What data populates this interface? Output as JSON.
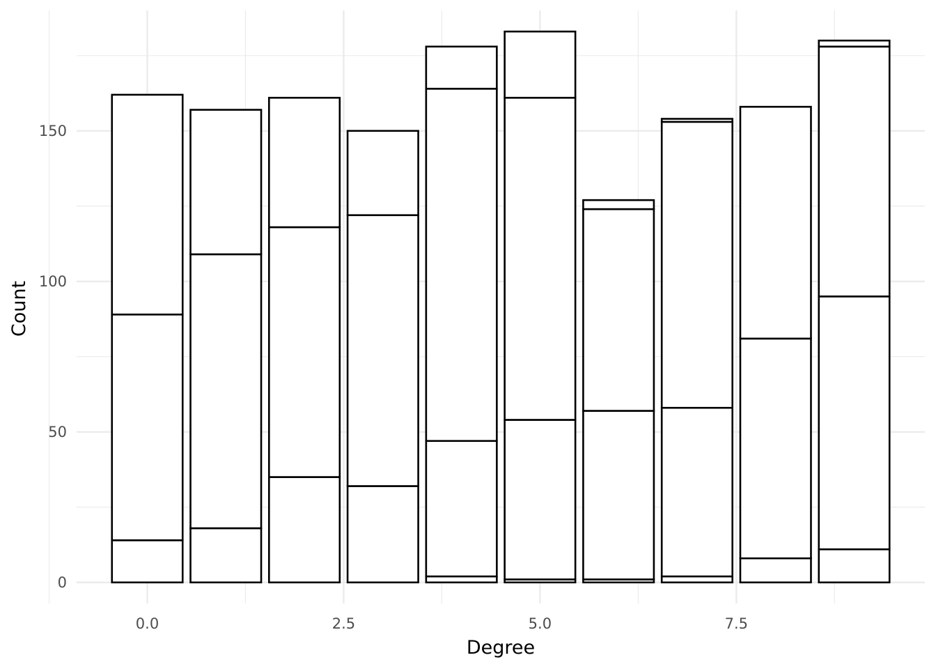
{
  "chart_data": {
    "type": "bar",
    "stacked": true,
    "title": "",
    "xlabel": "Degree",
    "ylabel": "Count",
    "x": [
      0,
      1,
      2,
      3,
      4,
      5,
      6,
      7,
      8,
      9
    ],
    "xlim": [
      -0.9,
      9.9
    ],
    "ylim": [
      -7,
      190
    ],
    "x_ticks": [
      0.0,
      2.5,
      5.0,
      7.5
    ],
    "x_tick_labels": [
      "0.0",
      "2.5",
      "5.0",
      "7.5"
    ],
    "y_ticks": [
      0,
      50,
      100,
      150
    ],
    "y_tick_labels": [
      "0",
      "50",
      "100",
      "150"
    ],
    "grid": true,
    "legend": "none",
    "colors": {
      "fill": "#ffffff",
      "outline": "#000000",
      "grid": "#ebebeb"
    },
    "series": [
      {
        "values": [
          14,
          18,
          35,
          32,
          2,
          1,
          1,
          2,
          8,
          11
        ]
      },
      {
        "values": [
          75,
          91,
          83,
          90,
          45,
          53,
          56,
          56,
          73,
          84
        ]
      },
      {
        "values": [
          73,
          48,
          43,
          28,
          117,
          107,
          67,
          95,
          77,
          83
        ]
      },
      {
        "values": [
          0,
          0,
          0,
          0,
          14,
          22,
          3,
          1,
          0,
          2
        ]
      }
    ]
  }
}
